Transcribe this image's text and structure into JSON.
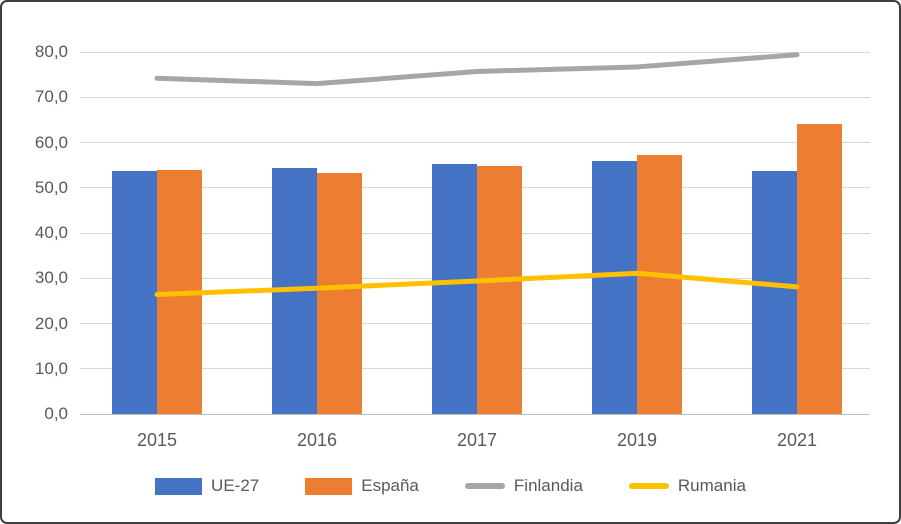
{
  "chart_data": {
    "type": "combo-bar-line",
    "categories": [
      "2015",
      "2016",
      "2017",
      "2019",
      "2021"
    ],
    "series": [
      {
        "name": "UE-27",
        "type": "bar",
        "color": "#4472C4",
        "values": [
          53.7,
          54.3,
          55.3,
          56.0,
          53.8
        ]
      },
      {
        "name": "España",
        "type": "bar",
        "color": "#ED7D31",
        "values": [
          53.9,
          53.3,
          54.8,
          57.3,
          64.1
        ]
      },
      {
        "name": "Finlandia",
        "type": "line",
        "color": "#A6A6A6",
        "values": [
          74.2,
          73.0,
          75.7,
          76.7,
          79.4
        ]
      },
      {
        "name": "Rumania",
        "type": "line",
        "color": "#FFC000",
        "values": [
          26.4,
          27.8,
          29.4,
          31.1,
          28.1
        ]
      }
    ],
    "title": "",
    "xlabel": "",
    "ylabel": "",
    "y_ticks": [
      "0,0",
      "10,0",
      "20,0",
      "30,0",
      "40,0",
      "50,0",
      "60,0",
      "70,0",
      "80,0"
    ],
    "ylim": [
      0,
      80
    ],
    "grid": "horizontal",
    "legend_position": "bottom",
    "colors": {
      "text": "#595959",
      "gridline": "#d9d9d9",
      "axis_line": "#bfbfbf",
      "background": "#ffffff",
      "frame_border": "#3f3f3f"
    }
  }
}
